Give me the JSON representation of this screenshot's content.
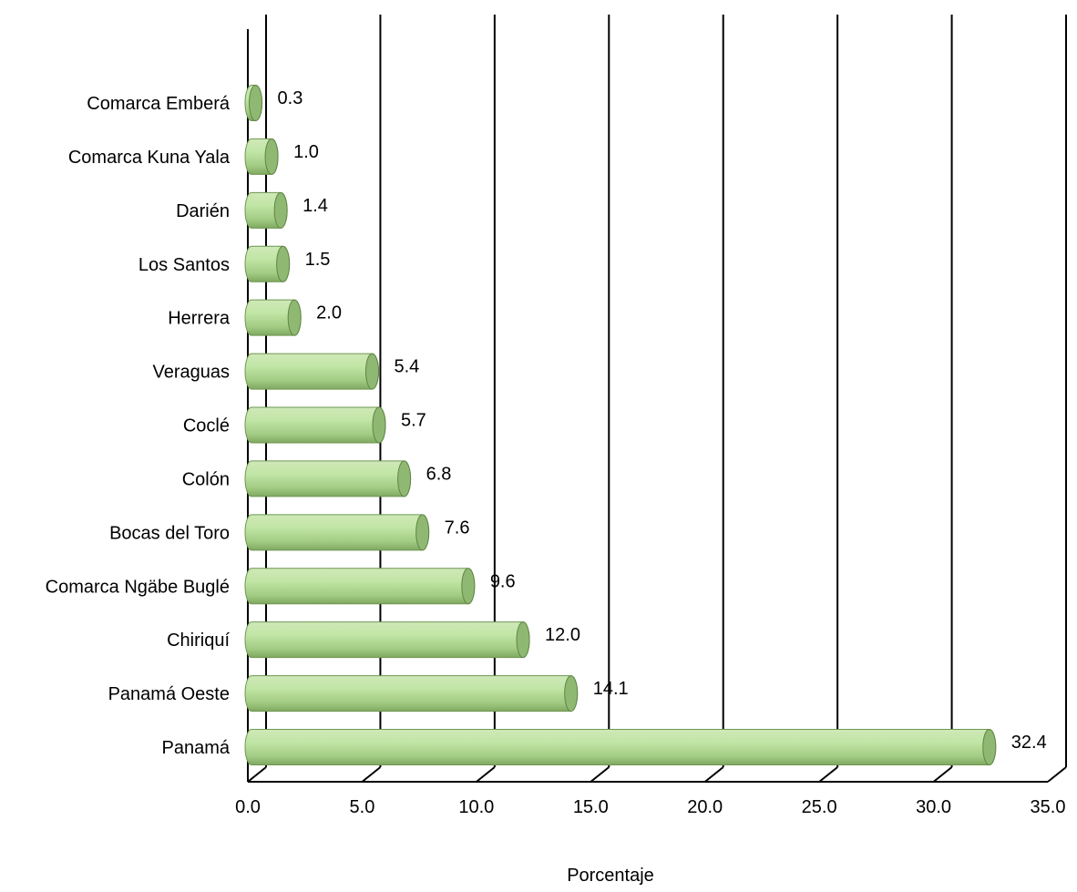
{
  "chart_data": {
    "type": "bar",
    "orientation": "horizontal",
    "style": "3d-cylinder",
    "categories": [
      "Comarca Emberá",
      "Comarca Kuna Yala",
      "Darién",
      "Los Santos",
      "Herrera",
      "Veraguas",
      "Coclé",
      "Colón",
      "Bocas del Toro",
      "Comarca Ngäbe Buglé",
      "Chiriquí",
      "Panamá Oeste ",
      "Panamá"
    ],
    "values": [
      0.3,
      1.0,
      1.4,
      1.5,
      2.0,
      5.4,
      5.7,
      6.8,
      7.6,
      9.6,
      12.0,
      14.1,
      32.4
    ],
    "value_labels": [
      "0.3",
      "1.0",
      "1.4",
      "1.5",
      "2.0",
      "5.4",
      "5.7",
      "6.8",
      "7.6",
      "9.6",
      "12.0",
      "14.1",
      "32.4"
    ],
    "xlabel": "Porcentaje",
    "xlim": [
      0,
      35
    ],
    "xticks": [
      "0.0",
      "5.0",
      "10.0",
      "15.0",
      "20.0",
      "25.0",
      "30.0",
      "35.0"
    ],
    "grid": "vertical",
    "legend": "none",
    "bar_color": "#a9d18e"
  }
}
